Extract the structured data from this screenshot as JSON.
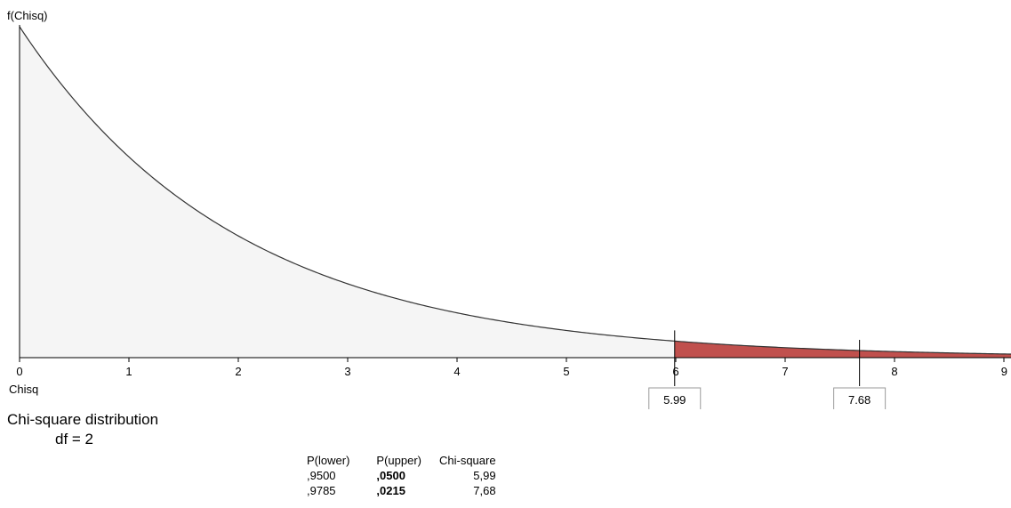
{
  "chart_data": {
    "type": "area",
    "distribution": "chi-square",
    "df": 2,
    "ylabel": "f(Chisq)",
    "xlabel": "Chisq",
    "xlim": [
      0,
      9.1
    ],
    "x_ticks": [
      "0",
      "1",
      "2",
      "3",
      "4",
      "5",
      "6",
      "7",
      "8",
      "9"
    ],
    "shaded_regions": [
      {
        "from": 5.99,
        "to": 7.68,
        "color": "#c0504d"
      },
      {
        "from": 7.68,
        "to": 9.1,
        "color": "#c0504d"
      }
    ],
    "markers": [
      {
        "value": 5.99,
        "label": "5.99"
      },
      {
        "value": 7.68,
        "label": "7.68"
      }
    ],
    "fill_color": "#f5f5f5",
    "curve_color": "#333333"
  },
  "caption": {
    "title": "Chi-square distribution",
    "df_text": "df =  2"
  },
  "results_table": {
    "headers": [
      "P(lower)",
      "P(upper)",
      "Chi-square"
    ],
    "rows": [
      [
        ",9500",
        ",0500",
        "5,99"
      ],
      [
        ",9785",
        ",0215",
        "7,68"
      ]
    ]
  }
}
